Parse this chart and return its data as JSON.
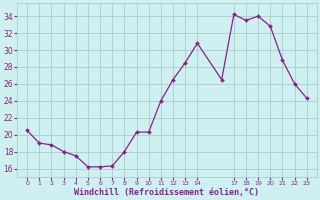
{
  "x": [
    0,
    1,
    2,
    3,
    4,
    5,
    6,
    7,
    8,
    9,
    10,
    11,
    12,
    13,
    14,
    16,
    17,
    18,
    19,
    20,
    21,
    22,
    23
  ],
  "y": [
    20.5,
    19.0,
    18.8,
    18.0,
    17.5,
    16.2,
    16.2,
    16.3,
    18.0,
    20.3,
    20.3,
    24.0,
    26.5,
    28.5,
    30.8,
    26.5,
    34.2,
    33.5,
    34.0,
    32.8,
    28.8,
    26.0,
    24.3
  ],
  "x_ticks": [
    0,
    1,
    2,
    3,
    4,
    5,
    6,
    7,
    8,
    9,
    10,
    11,
    12,
    13,
    14,
    17,
    18,
    19,
    20,
    21,
    22,
    23
  ],
  "x_tick_labels": [
    "0",
    "1",
    "2",
    "3",
    "4",
    "5",
    "6",
    "7",
    "8",
    "9",
    "10",
    "11",
    "12",
    "13",
    "14",
    "17",
    "18",
    "19",
    "20",
    "21",
    "22",
    "23"
  ],
  "ylim": [
    15.0,
    35.5
  ],
  "yticks": [
    16,
    18,
    20,
    22,
    24,
    26,
    28,
    30,
    32,
    34
  ],
  "xlabel": "Windchill (Refroidissement éolien,°C)",
  "line_color": "#882288",
  "bg_color": "#cef0f0",
  "grid_color": "#aacccc",
  "figsize": [
    3.2,
    2.0
  ],
  "dpi": 100
}
